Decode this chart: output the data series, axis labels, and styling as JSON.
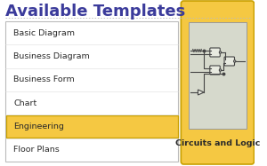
{
  "title": "Available Templates",
  "title_color": "#3B3B9B",
  "title_fontsize": 13,
  "bg_color": "#FFFFFF",
  "list_items": [
    "Basic Diagram",
    "Business Diagram",
    "Business Form",
    "Chart",
    "Engineering",
    "Floor Plans"
  ],
  "highlighted_item": "Engineering",
  "highlight_color": "#F5C842",
  "highlight_border": "#C8A000",
  "list_box_color": "#FFFFFF",
  "list_box_border": "#BBBBBB",
  "list_text_color": "#2A2A2A",
  "list_fontsize": 6.8,
  "card_bg": "#F5C842",
  "card_border": "#C8A000",
  "card_inner_bg": "#D6D9CC",
  "card_inner_border": "#999999",
  "card_label": "Circuits and Logic",
  "card_label_color": "#2A2A2A",
  "card_label_fontsize": 6.8,
  "title_underline_color": "#BBBBBB",
  "separator_color": "#DDDDDD",
  "circuit_color": "#444444"
}
